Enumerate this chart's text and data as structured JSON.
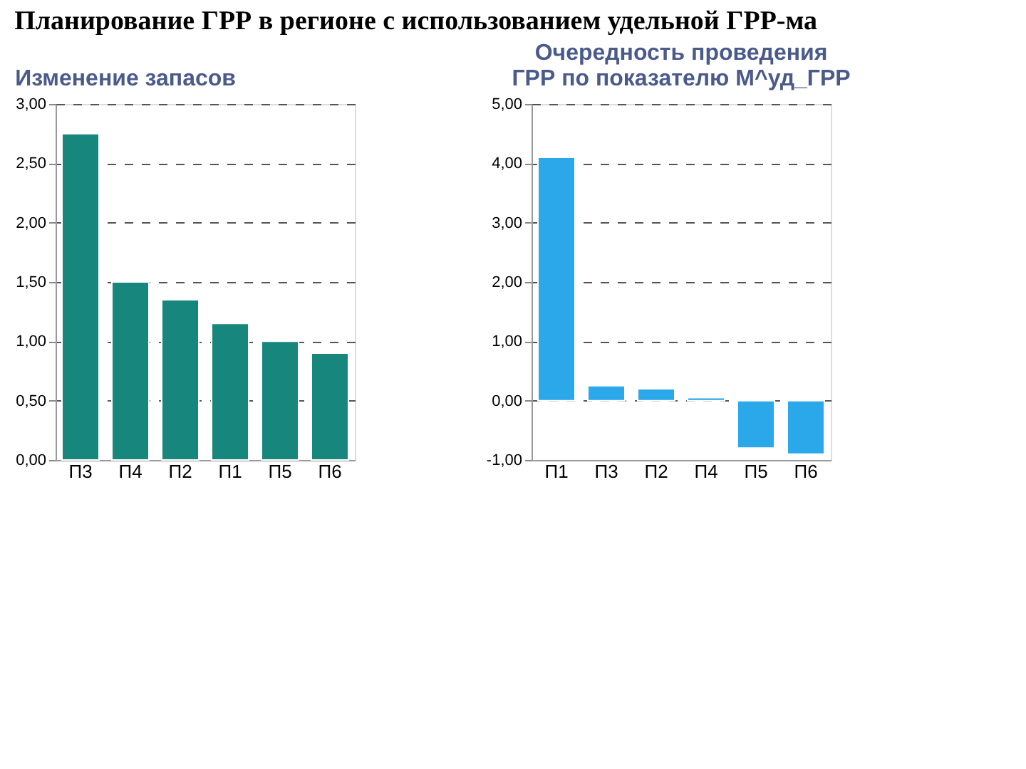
{
  "chart_data": [
    {
      "type": "bar",
      "title": "Планирование ГРР в регионе с использованием удельной ГРР-ма",
      "subtitle": "Изменение запасов",
      "categories": [
        "П3",
        "П4",
        "П2",
        "П1",
        "П5",
        "П6"
      ],
      "values": [
        2.75,
        1.5,
        1.35,
        1.15,
        1.0,
        0.9
      ],
      "color": "#17877d",
      "ylim": [
        0,
        3
      ],
      "yticks": [
        {
          "value": 0,
          "label": "0,00"
        },
        {
          "value": 0.5,
          "label": "0,50"
        },
        {
          "value": 1,
          "label": "1,00"
        },
        {
          "value": 1.5,
          "label": "1,50"
        },
        {
          "value": 2,
          "label": "2,00"
        },
        {
          "value": 2.5,
          "label": "2,50"
        },
        {
          "value": 3,
          "label": "3,00"
        }
      ],
      "grid": "y"
    },
    {
      "type": "bar",
      "title": [
        "Очередность проведения",
        "ГРР по показателю M^уд_ГРР"
      ],
      "categories": [
        "П1",
        "П3",
        "П2",
        "П4",
        "П5",
        "П6"
      ],
      "values": [
        4.1,
        0.25,
        0.2,
        0.05,
        -0.8,
        -0.9
      ],
      "color": "#2aa8ea",
      "ylim": [
        -1,
        5
      ],
      "yticks": [
        {
          "value": -1,
          "label": "-1,00"
        },
        {
          "value": 0,
          "label": "0,00"
        },
        {
          "value": 1,
          "label": "1,00"
        },
        {
          "value": 2,
          "label": "2,00"
        },
        {
          "value": 3,
          "label": "3,00"
        },
        {
          "value": 4,
          "label": "4,00"
        },
        {
          "value": 5,
          "label": "5,00"
        }
      ],
      "grid": "y"
    }
  ]
}
